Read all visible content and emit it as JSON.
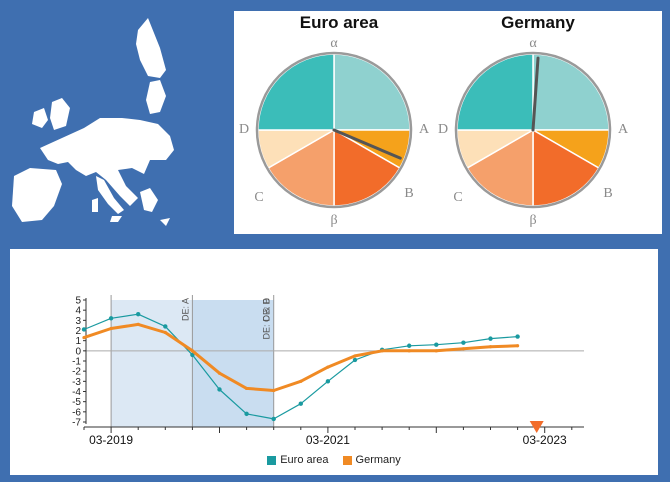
{
  "cycle_clocks": {
    "phase_labels": {
      "top": "α",
      "right": "A",
      "lower_right": "B",
      "bottom": "β",
      "lower_left": "C",
      "left": "D"
    },
    "clocks": [
      {
        "title": "Euro area",
        "hand_angle_deg": 113
      },
      {
        "title": "Germany",
        "hand_angle_deg": 4
      }
    ],
    "phase_colors": [
      "#8fd1cf",
      "#f5a21b",
      "#f26c2a",
      "#f5a06b",
      "#fde0b8",
      "#3bbdb9"
    ]
  },
  "chart_data": {
    "type": "line",
    "categories": [
      "12-2018",
      "03-2019",
      "06-2019",
      "09-2019",
      "12-2019",
      "03-2020",
      "06-2020",
      "09-2020",
      "12-2020",
      "03-2021",
      "06-2021",
      "09-2021",
      "12-2021",
      "03-2022",
      "06-2022",
      "09-2022",
      "12-2022"
    ],
    "series": [
      {
        "name": "Euro area",
        "color": "#1a9aa0",
        "values": [
          2.1,
          3.2,
          3.6,
          2.4,
          -0.4,
          -3.8,
          -6.2,
          -6.7,
          -5.2,
          -3.0,
          -0.9,
          0.1,
          0.5,
          0.6,
          0.8,
          1.2,
          1.4
        ]
      },
      {
        "name": "Germany",
        "color": "#f08a24",
        "values": [
          1.3,
          2.2,
          2.6,
          1.8,
          0.0,
          -2.2,
          -3.7,
          -3.9,
          -3.0,
          -1.6,
          -0.5,
          0.0,
          0.0,
          0.0,
          0.2,
          0.4,
          0.5
        ]
      }
    ],
    "ylim": [
      -7,
      5
    ],
    "yticks": [
      "5",
      "4",
      "3",
      "2",
      "1",
      "0",
      "-1",
      "-2",
      "-3",
      "-4",
      "-5",
      "-6",
      "-7"
    ],
    "xtick_labels": [
      {
        "label": "03-2019",
        "at": "03-2019"
      },
      {
        "label": "03-2021",
        "at": "03-2021"
      },
      {
        "label": "03-2023",
        "at": "03-2023"
      }
    ],
    "phase_bands": [
      {
        "label": "DE: A",
        "start": "03-2019",
        "end": "12-2019",
        "color": "#dce8f4"
      },
      {
        "label": "DE: B",
        "start": "12-2019",
        "end": "09-2020",
        "color": "#c9ddf0"
      },
      {
        "label": "DE: C & D",
        "start": "09-2020",
        "end": "09-2020",
        "color": "#c9ddf0"
      }
    ],
    "marker_color": "#f26c2a",
    "grid": false,
    "legend_position": "bottom"
  }
}
